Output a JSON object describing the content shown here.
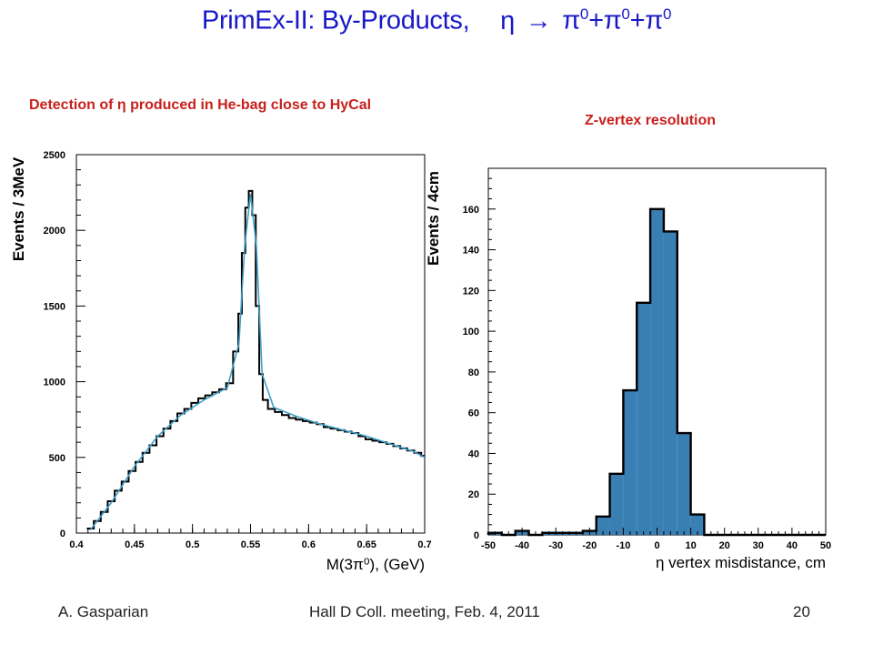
{
  "slide": {
    "title_prefix": "PrimEx-II: By-Products,",
    "title_eta": "η",
    "title_arrow": "→",
    "title_pi": "π",
    "title_pi_sup": "0",
    "title_plus": "+",
    "subtitle_left": "Detection of η produced in He-bag close to HyCal",
    "subtitle_right": "Z-vertex resolution",
    "footer_author": "A. Gasparian",
    "footer_meeting": "Hall D Coll. meeting, Feb. 4, 2011",
    "footer_page": "20"
  },
  "colors": {
    "title": "#1818c8",
    "subtitle": "#c8201c",
    "histogram_fill": "#3a7fb4",
    "fit_curve": "#3fa0c8"
  },
  "chart_data": [
    {
      "type": "histogram-with-fit",
      "xlabel": "M(3π⁰),  (GeV)",
      "ylabel": "Events / 3MeV",
      "xlim": [
        0.4,
        0.7
      ],
      "ylim": [
        0,
        2500
      ],
      "xticks": [
        "0.4",
        "0.45",
        "0.5",
        "0.55",
        "0.6",
        "0.65",
        "0.7"
      ],
      "yticks": [
        "0",
        "500",
        "1000",
        "1500",
        "2000",
        "2500"
      ],
      "x": [
        0.412,
        0.418,
        0.424,
        0.43,
        0.436,
        0.442,
        0.448,
        0.454,
        0.46,
        0.466,
        0.472,
        0.478,
        0.484,
        0.49,
        0.496,
        0.502,
        0.508,
        0.514,
        0.52,
        0.526,
        0.532,
        0.538,
        0.541,
        0.544,
        0.547,
        0.55,
        0.553,
        0.556,
        0.559,
        0.562,
        0.568,
        0.574,
        0.58,
        0.586,
        0.592,
        0.598,
        0.604,
        0.61,
        0.616,
        0.622,
        0.628,
        0.634,
        0.64,
        0.646,
        0.652,
        0.658,
        0.664,
        0.67,
        0.676,
        0.682,
        0.688,
        0.694,
        0.7
      ],
      "y": [
        30,
        80,
        140,
        210,
        280,
        340,
        410,
        470,
        530,
        580,
        640,
        690,
        740,
        790,
        820,
        860,
        890,
        910,
        930,
        950,
        990,
        1200,
        1450,
        1850,
        2150,
        2260,
        2100,
        1500,
        1050,
        880,
        820,
        800,
        780,
        760,
        750,
        740,
        730,
        720,
        700,
        690,
        680,
        670,
        660,
        640,
        620,
        610,
        600,
        590,
        575,
        560,
        545,
        530,
        510
      ],
      "fit": {
        "x": [
          0.412,
          0.43,
          0.45,
          0.47,
          0.49,
          0.51,
          0.53,
          0.54,
          0.545,
          0.55,
          0.555,
          0.56,
          0.57,
          0.59,
          0.61,
          0.63,
          0.65,
          0.67,
          0.69,
          0.7
        ],
        "y": [
          20,
          200,
          440,
          640,
          780,
          880,
          960,
          1250,
          1900,
          2240,
          1900,
          1050,
          830,
          770,
          720,
          680,
          640,
          590,
          540,
          500
        ]
      }
    },
    {
      "type": "histogram",
      "xlabel": "η vertex misdistance,   cm",
      "ylabel": "Events / 4cm",
      "xlim": [
        -50,
        50
      ],
      "ylim": [
        0,
        180
      ],
      "xticks": [
        "-50",
        "-40",
        "-30",
        "-20",
        "-10",
        "0",
        "10",
        "20",
        "30",
        "40",
        "50"
      ],
      "yticks": [
        "0",
        "20",
        "40",
        "60",
        "80",
        "100",
        "120",
        "140",
        "160"
      ],
      "bin_edges": [
        -50,
        -46,
        -42,
        -38,
        -34,
        -30,
        -26,
        -22,
        -18,
        -14,
        -10,
        -6,
        -2,
        2,
        6,
        10,
        14,
        18,
        22,
        26,
        30,
        34,
        38,
        42,
        46,
        50
      ],
      "counts": [
        1,
        0,
        2,
        0,
        1,
        1,
        1,
        2,
        9,
        30,
        71,
        114,
        160,
        149,
        50,
        10,
        0,
        0,
        0,
        0,
        0,
        0,
        0,
        0,
        0
      ]
    }
  ]
}
